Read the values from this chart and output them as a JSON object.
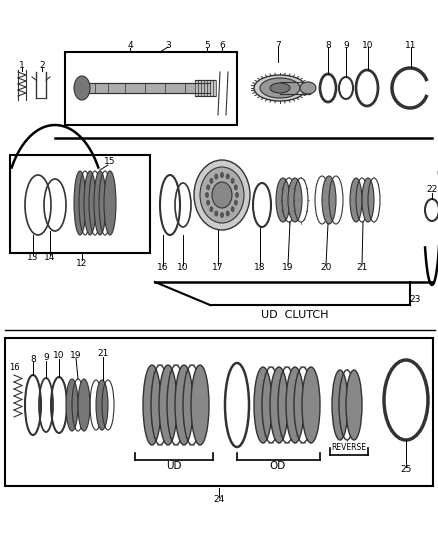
{
  "bg_color": "#ffffff",
  "line_color": "#000000",
  "dark_gray": "#333333",
  "med_gray": "#666666",
  "light_gray": "#aaaaaa",
  "fig_width": 4.38,
  "fig_height": 5.33,
  "ud_clutch_text": "UD  CLUTCH",
  "ud_text": "UD",
  "od_text": "OD",
  "reverse_text": "REVERSE"
}
